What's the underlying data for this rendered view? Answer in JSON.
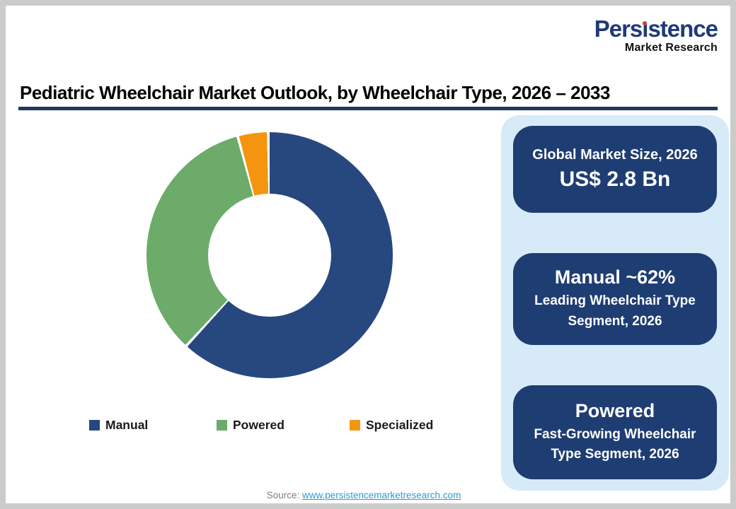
{
  "logo": {
    "title_pre": "Pers",
    "title_i": "ı",
    "title_post": "stence",
    "subtitle": "Market Research",
    "brand_color": "#203a78",
    "dot_color": "#d93a2b"
  },
  "header": {
    "title": "Pediatric Wheelchair Market Outlook, by Wheelchair Type, 2026 – 2033",
    "rule_color": "#1f3864"
  },
  "chart_data": {
    "type": "pie",
    "donut": true,
    "start_angle_deg": 0,
    "direction": "clockwise",
    "categories": [
      "Manual",
      "Powered",
      "Specialized"
    ],
    "values": [
      62,
      34,
      4
    ],
    "unit": "percent_share",
    "colors": [
      "#27477f",
      "#6cab69",
      "#f5950f"
    ],
    "legend_position": "bottom",
    "hole_ratio": 0.5,
    "segment_gap_color": "#ffffff"
  },
  "side_panel": {
    "background": "#d6eaf8",
    "box_background": "#1e3d72",
    "boxes": [
      {
        "line1": "Global Market Size, 2026",
        "line2": "US$ 2.8 Bn"
      },
      {
        "line1": "Manual ~62%",
        "line2": "Leading Wheelchair Type Segment, 2026"
      },
      {
        "line1": "Powered",
        "line2": "Fast-Growing Wheelchair Type Segment, 2026"
      }
    ]
  },
  "footer": {
    "source_label": "Source:",
    "source_link": "www.persistencemarketresearch.com"
  }
}
